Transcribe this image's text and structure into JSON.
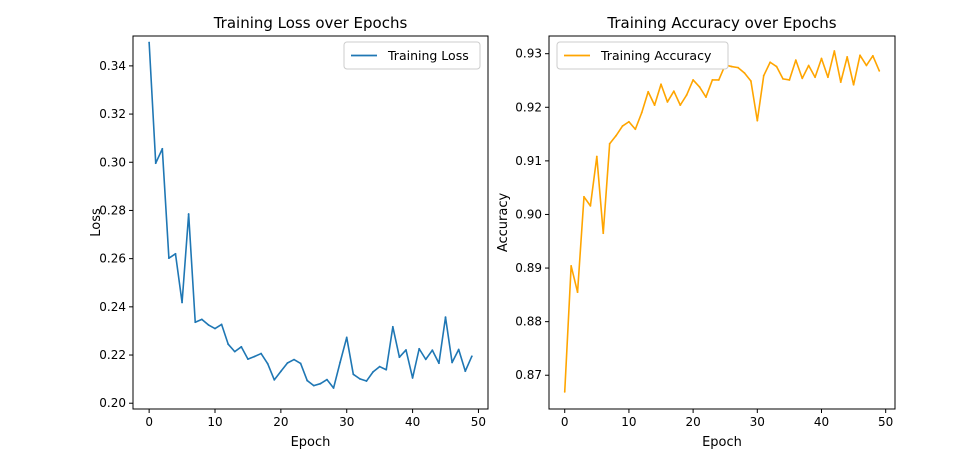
{
  "chart_data": [
    {
      "type": "line",
      "title": "Training Loss over Epochs",
      "xlabel": "Epoch",
      "ylabel": "Loss",
      "xlim": [
        -2.45,
        51.45
      ],
      "ylim": [
        0.1976,
        0.3524
      ],
      "xticks": [
        0,
        10,
        20,
        30,
        40,
        50
      ],
      "xtick_labels": [
        "0",
        "10",
        "20",
        "30",
        "40",
        "50"
      ],
      "yticks": [
        0.2,
        0.22,
        0.24,
        0.26,
        0.28,
        0.3,
        0.32,
        0.34
      ],
      "ytick_labels": [
        "0.20",
        "0.22",
        "0.24",
        "0.26",
        "0.28",
        "0.30",
        "0.32",
        "0.34"
      ],
      "grid": false,
      "legend_position": "top-right",
      "series": [
        {
          "name": "Training Loss",
          "color": "#1f77b4",
          "x": [
            0,
            1,
            2,
            3,
            4,
            5,
            6,
            7,
            8,
            9,
            10,
            11,
            12,
            13,
            14,
            15,
            16,
            17,
            18,
            19,
            20,
            21,
            22,
            23,
            24,
            25,
            26,
            27,
            28,
            29,
            30,
            31,
            32,
            33,
            34,
            35,
            36,
            37,
            38,
            39,
            40,
            41,
            42,
            43,
            44,
            45,
            46,
            47,
            48,
            49
          ],
          "values": [
            0.3497,
            0.2996,
            0.3056,
            0.2602,
            0.262,
            0.2418,
            0.2785,
            0.2336,
            0.2348,
            0.2325,
            0.231,
            0.2327,
            0.2245,
            0.2214,
            0.2234,
            0.2183,
            0.2194,
            0.2206,
            0.2164,
            0.2097,
            0.2132,
            0.2167,
            0.2181,
            0.2165,
            0.2094,
            0.2073,
            0.2081,
            0.2098,
            0.2063,
            0.217,
            0.2273,
            0.212,
            0.2101,
            0.2092,
            0.213,
            0.2152,
            0.2139,
            0.2317,
            0.2191,
            0.2221,
            0.2105,
            0.2226,
            0.2182,
            0.222,
            0.2166,
            0.2357,
            0.2169,
            0.2223,
            0.2133,
            0.2195
          ]
        }
      ]
    },
    {
      "type": "line",
      "title": "Training Accuracy over Epochs",
      "xlabel": "Epoch",
      "ylabel": "Accuracy",
      "xlim": [
        -2.45,
        51.45
      ],
      "ylim": [
        0.8637,
        0.9333
      ],
      "xticks": [
        0,
        10,
        20,
        30,
        40,
        50
      ],
      "xtick_labels": [
        "0",
        "10",
        "20",
        "30",
        "40",
        "50"
      ],
      "yticks": [
        0.87,
        0.88,
        0.89,
        0.9,
        0.91,
        0.92,
        0.93
      ],
      "ytick_labels": [
        "0.87",
        "0.88",
        "0.89",
        "0.90",
        "0.91",
        "0.92",
        "0.93"
      ],
      "grid": false,
      "legend_position": "top-left",
      "series": [
        {
          "name": "Training Accuracy",
          "color": "#ffa500",
          "x": [
            0,
            1,
            2,
            3,
            4,
            5,
            6,
            7,
            8,
            9,
            10,
            11,
            12,
            13,
            14,
            15,
            16,
            17,
            18,
            19,
            20,
            21,
            22,
            23,
            24,
            25,
            26,
            27,
            28,
            29,
            30,
            31,
            32,
            33,
            34,
            35,
            36,
            37,
            38,
            39,
            40,
            41,
            42,
            43,
            44,
            45,
            46,
            47,
            48,
            49
          ],
          "values": [
            0.8669,
            0.8904,
            0.8855,
            0.9033,
            0.9016,
            0.9108,
            0.8965,
            0.9132,
            0.9147,
            0.9165,
            0.9173,
            0.9159,
            0.919,
            0.9229,
            0.9204,
            0.9243,
            0.921,
            0.923,
            0.9204,
            0.9223,
            0.9251,
            0.9238,
            0.9219,
            0.9251,
            0.9251,
            0.9279,
            0.9276,
            0.9274,
            0.9264,
            0.9249,
            0.9175,
            0.9259,
            0.9284,
            0.9276,
            0.9253,
            0.9251,
            0.9288,
            0.9254,
            0.9278,
            0.9256,
            0.9291,
            0.9256,
            0.9305,
            0.9247,
            0.9294,
            0.9242,
            0.9297,
            0.9278,
            0.9296,
            0.9268
          ]
        }
      ]
    }
  ]
}
